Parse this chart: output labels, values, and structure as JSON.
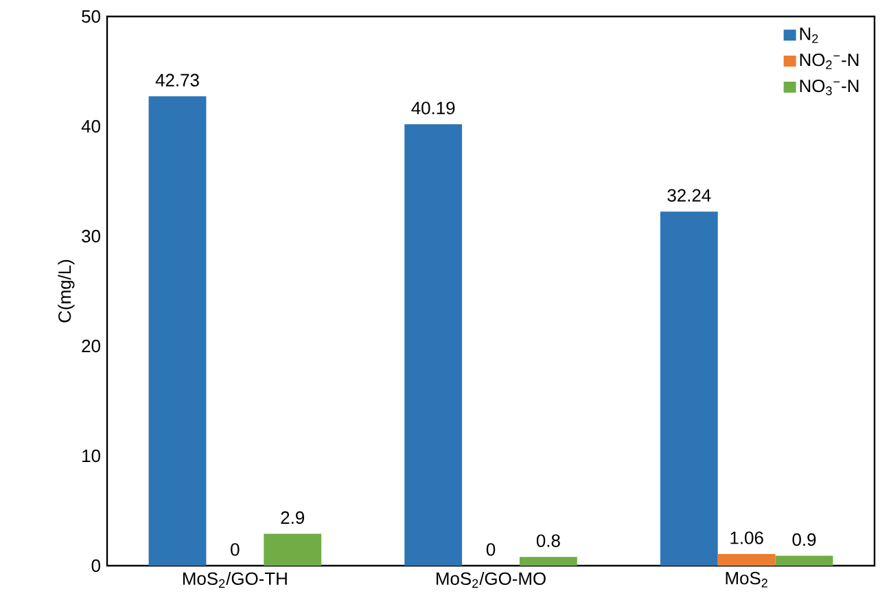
{
  "chart_data": {
    "type": "bar",
    "ylabel": "C(mg/L)",
    "categories": [
      "MoS$_{2}$/GO-TH",
      "MoS$_{2}$/GO-MO",
      "MoS$_{2}$"
    ],
    "series": [
      {
        "name": "N$_{2}$",
        "color": "#2e75b6",
        "values": [
          42.73,
          40.19,
          32.24
        ]
      },
      {
        "name": "NO$_{2}$$^{−}$-N",
        "color": "#ed7d31",
        "values": [
          0,
          0,
          1.06
        ]
      },
      {
        "name": "NO$_{3}$$^{−}$-N",
        "color": "#70ad47",
        "values": [
          2.9,
          0.8,
          0.9
        ]
      }
    ],
    "ylim": [
      0,
      50
    ],
    "yticks": [
      0,
      10,
      20,
      30,
      40,
      50
    ],
    "data_labels": true,
    "legend": "top right"
  }
}
